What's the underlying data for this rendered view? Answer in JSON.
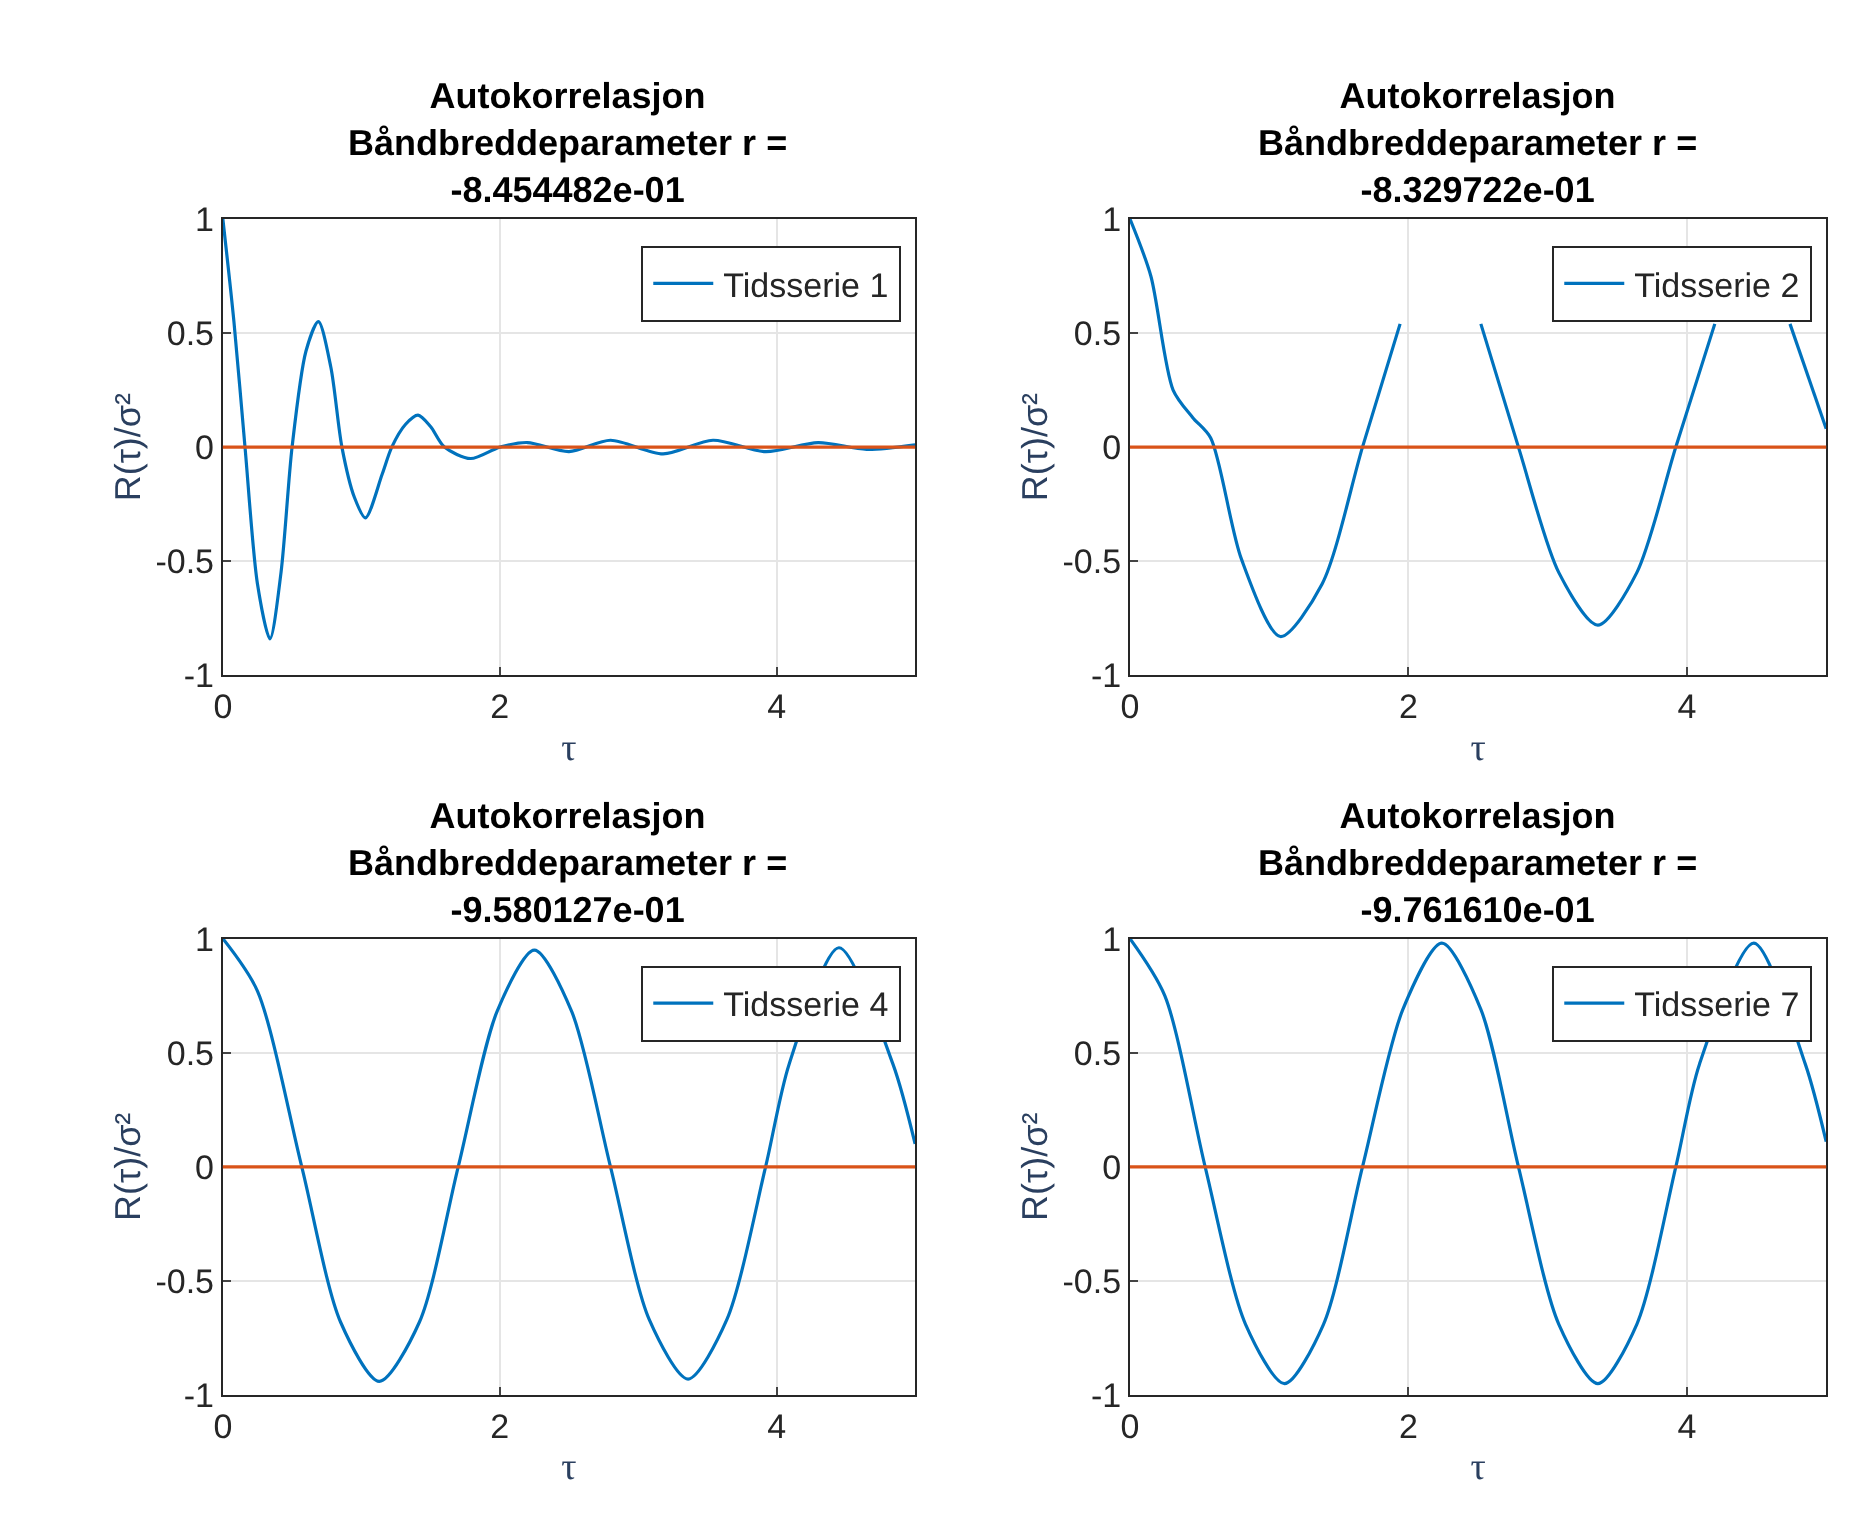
{
  "chart_data": [
    {
      "type": "line",
      "title": "Autokorrelasjon\nBåndbreddeparameter r =\n-8.454482e-01",
      "xlabel": "τ",
      "ylabel": "R(τ)/σ²",
      "xlim": [
        0,
        5
      ],
      "ylim": [
        -1,
        1
      ],
      "xticks": [
        0,
        2,
        4
      ],
      "yticks": [
        -1,
        -0.5,
        0,
        0.5,
        1
      ],
      "grid": true,
      "legend": "top right",
      "series": [
        {
          "name": "Tidsserie 1",
          "color": "#0072bd",
          "x": [
            0,
            0.08,
            0.16,
            0.25,
            0.34,
            0.42,
            0.5,
            0.6,
            0.69,
            0.78,
            0.86,
            0.95,
            1.03,
            1.15,
            1.22,
            1.32,
            1.41,
            1.5,
            1.6,
            1.79,
            2.0,
            2.2,
            2.5,
            2.8,
            3.18,
            3.54,
            3.92,
            4.3,
            4.65,
            5.0
          ],
          "values": [
            1,
            0.55,
            0,
            -0.6,
            -0.84,
            -0.55,
            0,
            0.42,
            0.55,
            0.35,
            0,
            -0.22,
            -0.31,
            -0.12,
            0,
            0.1,
            0.14,
            0.09,
            0,
            -0.05,
            0,
            0.02,
            -0.02,
            0.03,
            -0.03,
            0.03,
            -0.02,
            0.02,
            -0.01,
            0.01
          ]
        }
      ],
      "ref_lines": [
        {
          "axis": "y",
          "value": 0,
          "color": "#d95319"
        }
      ]
    },
    {
      "type": "line",
      "title": "Autokorrelasjon\nBåndbreddeparameter r =\n-8.329722e-01",
      "xlabel": "τ",
      "ylabel": "R(τ)/σ²",
      "xlim": [
        0,
        5
      ],
      "ylim": [
        -1,
        1
      ],
      "xticks": [
        0,
        2,
        4
      ],
      "yticks": [
        -1,
        -0.5,
        0,
        0.5,
        1
      ],
      "grid": true,
      "legend": "top right",
      "series": [
        {
          "name": "Tidsserie 2",
          "color": "#0072bd",
          "x": [
            0,
            0.15,
            0.31,
            0.45,
            0.58,
            0.8,
            1.08,
            1.38,
            1.67,
            1.94,
            2.23,
            2.52,
            2.79,
            3.08,
            3.36,
            3.64,
            3.92,
            4.2,
            4.47,
            4.74,
            5.0
          ],
          "values": [
            1,
            0.75,
            0.25,
            0.13,
            0.04,
            -0.49,
            -0.83,
            -0.6,
            0,
            0.54,
            null,
            0.54,
            0,
            -0.55,
            -0.78,
            -0.55,
            0,
            0.54,
            null,
            0.54,
            0.08
          ]
        }
      ],
      "ref_lines": [
        {
          "axis": "y",
          "value": 0,
          "color": "#d95319"
        }
      ]
    },
    {
      "type": "line",
      "title": "Autokorrelasjon\nBåndbreddeparameter r =\n-9.580127e-01",
      "xlabel": "τ",
      "ylabel": "R(τ)/σ²",
      "xlim": [
        0,
        5
      ],
      "ylim": [
        -1,
        1
      ],
      "xticks": [
        0,
        2,
        4
      ],
      "yticks": [
        -1,
        -0.5,
        0,
        0.5,
        1
      ],
      "grid": true,
      "legend": "top right",
      "series": [
        {
          "name": "Tidsserie 4",
          "color": "#0072bd",
          "x": [
            0,
            0.25,
            0.57,
            0.85,
            1.13,
            1.42,
            1.7,
            1.98,
            2.25,
            2.52,
            2.8,
            3.08,
            3.36,
            3.64,
            3.92,
            4.09,
            4.45,
            4.84,
            5.0
          ],
          "values": [
            1,
            0.77,
            0,
            -0.68,
            -0.94,
            -0.68,
            0,
            0.68,
            0.95,
            0.68,
            0,
            -0.67,
            -0.93,
            -0.67,
            0,
            0.45,
            0.96,
            0.45,
            0.1
          ]
        }
      ],
      "ref_lines": [
        {
          "axis": "y",
          "value": 0,
          "color": "#d95319"
        }
      ]
    },
    {
      "type": "line",
      "title": "Autokorrelasjon\nBåndbreddeparameter r =\n-9.761610e-01",
      "xlabel": "τ",
      "ylabel": "R(τ)/σ²",
      "xlim": [
        0,
        5
      ],
      "ylim": [
        -1,
        1
      ],
      "xticks": [
        0,
        2,
        4
      ],
      "yticks": [
        -1,
        -0.5,
        0,
        0.5,
        1
      ],
      "grid": true,
      "legend": "top right",
      "series": [
        {
          "name": "Tidsserie 7",
          "color": "#0072bd",
          "x": [
            0,
            0.25,
            0.54,
            0.83,
            1.11,
            1.39,
            1.67,
            1.96,
            2.24,
            2.52,
            2.79,
            3.08,
            3.36,
            3.64,
            3.92,
            4.09,
            4.48,
            4.85,
            5.0
          ],
          "values": [
            1,
            0.75,
            0,
            -0.69,
            -0.95,
            -0.69,
            0,
            0.69,
            0.98,
            0.69,
            0,
            -0.69,
            -0.95,
            -0.69,
            0,
            0.45,
            0.98,
            0.45,
            0.11
          ]
        }
      ],
      "ref_lines": [
        {
          "axis": "y",
          "value": 0,
          "color": "#d95319"
        }
      ]
    }
  ]
}
